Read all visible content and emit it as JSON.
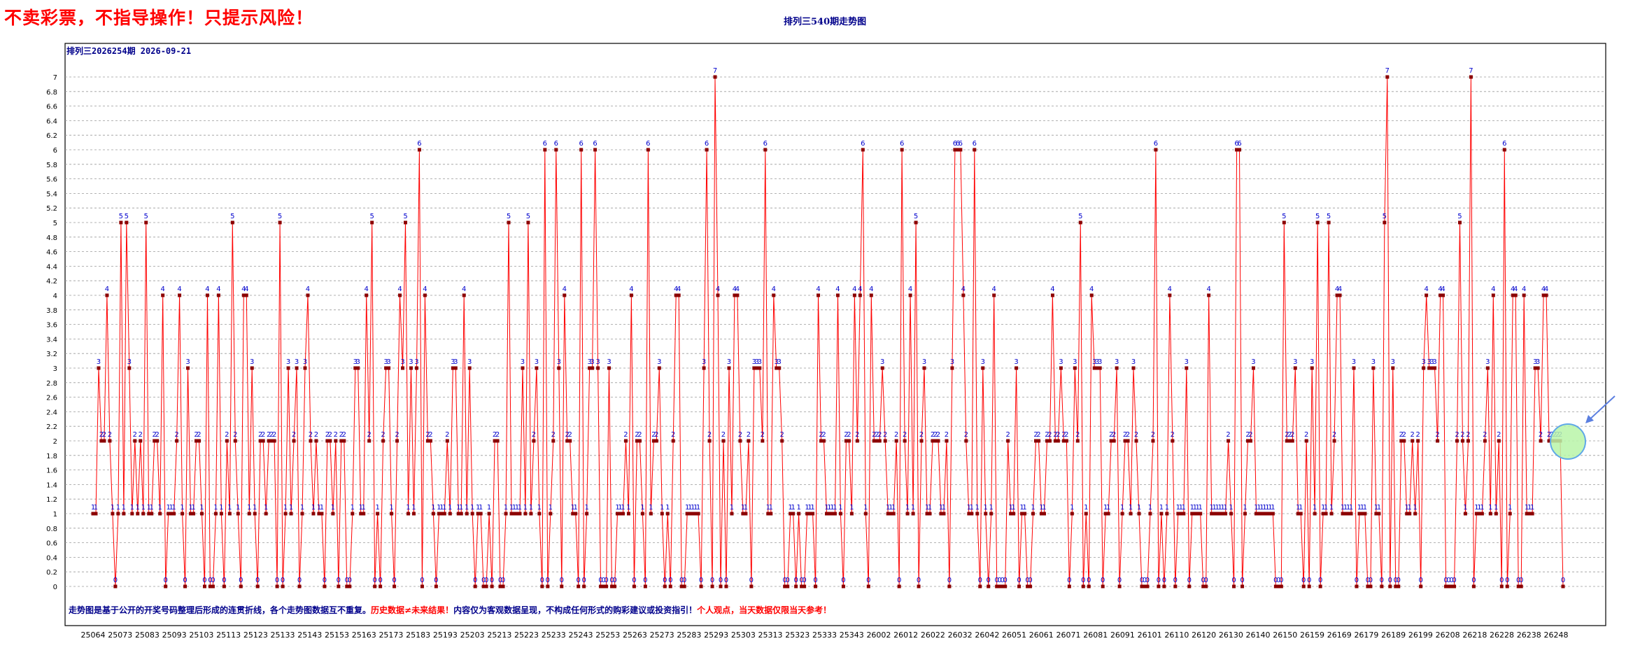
{
  "warning": "不卖彩票，不指导操作！只提示风险！",
  "chart_title": "排列三540期走势图",
  "period_label": "排列三2026254期 2026-09-21",
  "footer_note": {
    "part1": "走势图是基于公开的开奖号码整理后形成的连贯折线，各个走势图数据互不重复。",
    "part2": "历史数据≠未来结果！",
    "part3": "内容仅为客观数据呈现，不构成任何形式的购彩建议或投资指引！",
    "part4": "个人观点，当天数据仅限当天参考！"
  },
  "colors": {
    "line": "#ff0000",
    "point": "#8b0000",
    "label": "#0000cd",
    "highlight": "#90ee90"
  },
  "chart_data": {
    "type": "line",
    "title": "排列三540期走势图",
    "ylim": [
      0,
      7.2
    ],
    "grid": true,
    "y_ticks": [
      "0",
      "0.2",
      "0.4",
      "0.6",
      "0.8",
      "1",
      "1.2",
      "1.4",
      "1.6",
      "1.8",
      "2",
      "2.2",
      "2.4",
      "2.6",
      "2.8",
      "3",
      "3.2",
      "3.4",
      "3.6",
      "3.8",
      "4",
      "4.2",
      "4.4",
      "4.6",
      "4.8",
      "5",
      "5.2",
      "5.4",
      "5.6",
      "5.8",
      "6",
      "6.2",
      "6.4",
      "6.6",
      "6.8",
      "7"
    ],
    "x_ticks": [
      "25064",
      "25073",
      "25083",
      "25093",
      "25103",
      "25113",
      "25123",
      "25133",
      "25143",
      "25153",
      "25163",
      "25173",
      "25183",
      "25193",
      "25203",
      "25213",
      "25223",
      "25233",
      "25243",
      "25253",
      "25263",
      "25273",
      "25283",
      "25293",
      "25303",
      "25313",
      "25323",
      "25333",
      "25343",
      "26002",
      "26012",
      "26022",
      "26032",
      "26042",
      "26051",
      "26061",
      "26071",
      "26081",
      "26091",
      "26101",
      "26110",
      "26120",
      "26130",
      "26140",
      "26150",
      "26159",
      "26169",
      "26179",
      "26189",
      "26199",
      "26208",
      "26218",
      "26228",
      "26238",
      "26248"
    ],
    "series": [
      {
        "values": [
          1,
          1,
          3,
          2,
          2,
          4,
          2,
          1,
          0,
          1,
          5,
          1,
          5,
          3,
          1,
          2,
          1,
          2,
          1,
          5,
          1,
          1,
          2,
          2,
          1,
          4,
          0,
          1,
          1,
          1,
          2,
          4,
          1,
          0,
          3,
          1,
          1,
          2,
          2,
          1,
          0,
          4,
          0,
          0,
          1,
          4,
          1,
          0,
          2,
          1,
          5,
          2,
          1,
          0,
          4,
          4,
          1,
          3,
          1,
          0,
          2,
          2,
          1,
          2,
          2,
          2,
          0,
          5,
          0,
          1,
          3,
          1,
          2,
          3,
          0,
          1,
          3,
          4,
          2,
          1,
          2,
          1,
          1,
          0,
          2,
          2,
          1,
          2,
          0,
          2,
          2,
          0,
          0,
          1,
          3,
          3,
          1,
          1,
          4,
          2,
          5,
          0,
          1,
          0,
          2,
          3,
          3,
          1,
          0,
          2,
          4,
          3,
          5,
          1,
          3,
          1,
          3,
          6,
          0,
          4,
          2,
          2,
          1,
          0,
          1,
          1,
          1,
          2,
          1,
          3,
          3,
          1,
          1,
          4,
          1,
          3,
          1,
          0,
          1,
          1,
          0,
          0,
          1,
          0,
          2,
          2,
          0,
          0,
          1,
          5,
          1,
          1,
          1,
          1,
          3,
          1,
          5,
          1,
          2,
          3,
          1,
          0,
          6,
          0,
          1,
          2,
          6,
          3,
          0,
          4,
          2,
          2,
          1,
          1,
          0,
          6,
          0,
          1,
          3,
          3,
          6,
          3,
          0,
          0,
          0,
          3,
          0,
          0,
          1,
          1,
          1,
          2,
          1,
          4,
          0,
          2,
          2,
          1,
          0,
          6,
          1,
          2,
          2,
          3,
          1,
          0,
          1,
          0,
          2,
          4,
          4,
          0,
          0,
          1,
          1,
          1,
          1,
          1,
          0,
          3,
          6,
          2,
          0,
          7,
          4,
          0,
          2,
          0,
          3,
          1,
          4,
          4,
          2,
          1,
          1,
          2,
          0,
          3,
          3,
          3,
          2,
          6,
          1,
          1,
          4,
          3,
          3,
          2,
          0,
          0,
          1,
          1,
          0,
          1,
          0,
          0,
          1,
          1,
          1,
          0,
          4,
          2,
          2,
          1,
          1,
          1,
          1,
          4,
          1,
          0,
          2,
          2,
          1,
          4,
          2,
          4,
          6,
          1,
          0,
          4,
          2,
          2,
          2,
          3,
          2,
          1,
          1,
          1,
          2,
          0,
          6,
          2,
          1,
          4,
          1,
          5,
          0,
          2,
          3,
          1,
          1,
          2,
          2,
          2,
          1,
          1,
          2,
          0,
          3,
          6,
          6,
          6,
          4,
          2,
          1,
          1,
          6,
          1,
          0,
          3,
          1,
          0,
          1,
          4,
          0,
          0,
          0,
          0,
          2,
          1,
          1,
          3,
          0,
          1,
          1,
          0,
          0,
          1,
          2,
          2,
          1,
          1,
          2,
          2,
          4,
          2,
          2,
          3,
          2,
          2,
          0,
          1,
          3,
          2,
          5,
          0,
          1,
          0,
          4,
          3,
          3,
          3,
          0,
          1,
          1,
          2,
          2,
          3,
          0,
          1,
          2,
          2,
          1,
          3,
          2,
          1,
          0,
          0,
          0,
          1,
          2,
          6,
          0,
          1,
          0,
          1,
          4,
          2,
          0,
          1,
          1,
          1,
          3,
          0,
          1,
          1,
          1,
          1,
          0,
          0,
          4,
          1,
          1,
          1,
          1,
          1,
          1,
          2,
          1,
          0,
          6,
          6,
          0,
          1,
          2,
          2,
          3,
          1,
          1,
          1,
          1,
          1,
          1,
          1,
          0,
          0,
          0,
          5,
          2,
          2,
          2,
          3,
          1,
          1,
          0,
          2,
          0,
          3,
          1,
          5,
          0,
          1,
          1,
          5,
          1,
          2,
          4,
          4,
          1,
          1,
          1,
          1,
          3,
          0,
          1,
          1,
          1,
          0,
          0,
          3,
          1,
          1,
          0,
          5,
          7,
          0,
          3,
          0,
          0,
          2,
          2,
          1,
          1,
          2,
          1,
          2,
          0,
          3,
          4,
          3,
          3,
          3,
          2,
          4,
          4,
          0,
          0,
          0,
          0,
          2,
          5,
          2,
          1,
          2,
          7,
          0,
          1,
          1,
          1,
          2,
          3,
          1,
          4,
          1,
          2,
          0,
          6,
          0,
          1,
          4,
          4,
          0,
          0,
          4,
          1,
          1,
          1,
          3,
          3,
          2,
          4,
          4,
          2,
          2,
          2,
          2,
          2,
          0
        ]
      }
    ],
    "last_value_label": "0"
  }
}
